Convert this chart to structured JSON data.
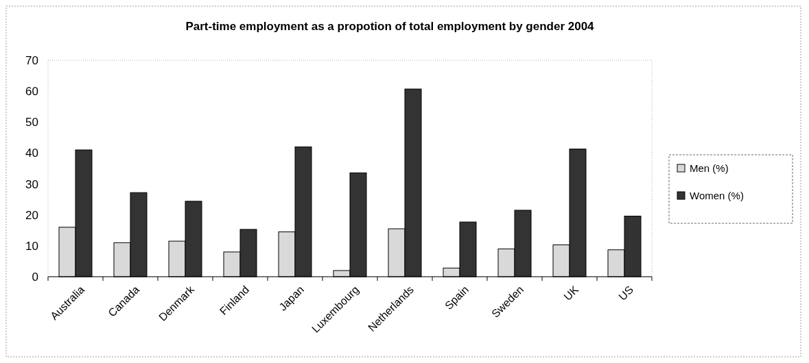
{
  "chart_data": {
    "type": "bar",
    "title": "Part-time employment as a propotion of total employment by gender 2004",
    "categories": [
      "Australia",
      "Canada",
      "Denmark",
      "Finland",
      "Japan",
      "Luxembourg",
      "Netherlands",
      "Spain",
      "Sweden",
      "UK",
      "US"
    ],
    "series": [
      {
        "name": "Men (%)",
        "color": "#d9d9d9",
        "values": [
          16,
          11,
          11.5,
          8,
          14.5,
          2,
          15.5,
          2.8,
          9,
          10.3,
          8.7
        ]
      },
      {
        "name": "Women (%)",
        "color": "#333333",
        "values": [
          41,
          27.2,
          24.4,
          15.3,
          42,
          33.6,
          60.7,
          17.7,
          21.5,
          41.3,
          19.6
        ]
      }
    ],
    "ylim": [
      0,
      70
    ],
    "yticks": [
      0,
      10,
      20,
      30,
      40,
      50,
      60,
      70
    ],
    "grid": false,
    "legend": "right"
  }
}
